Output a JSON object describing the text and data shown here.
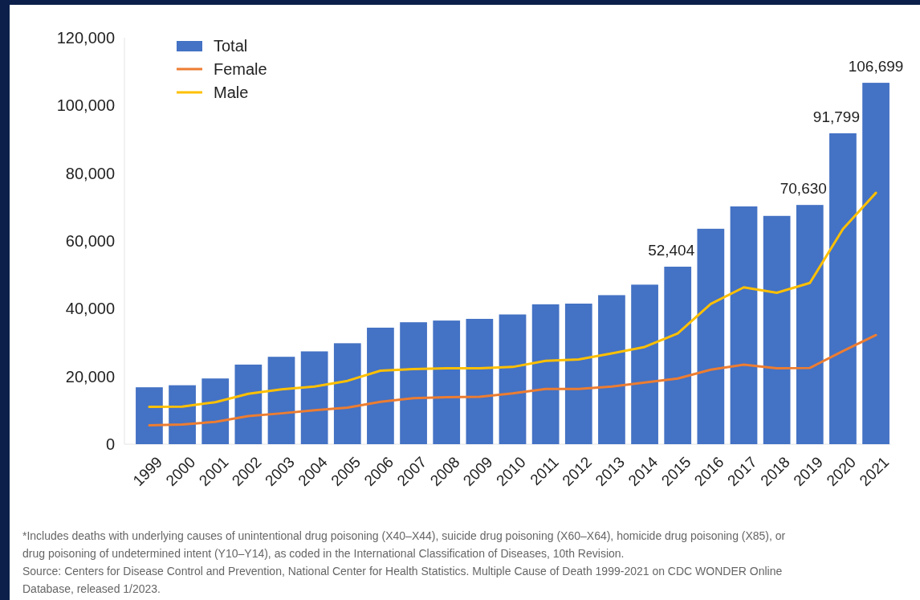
{
  "chart_data": {
    "type": "bar",
    "categories": [
      "1999",
      "2000",
      "2001",
      "2002",
      "2003",
      "2004",
      "2005",
      "2006",
      "2007",
      "2008",
      "2009",
      "2010",
      "2011",
      "2012",
      "2013",
      "2014",
      "2015",
      "2016",
      "2017",
      "2018",
      "2019",
      "2020",
      "2021"
    ],
    "series": [
      {
        "name": "Total",
        "color": "#4472c4",
        "values": [
          16800,
          17400,
          19400,
          23500,
          25800,
          27400,
          29800,
          34400,
          36000,
          36500,
          37000,
          38300,
          41300,
          41500,
          44000,
          47100,
          52404,
          63600,
          70200,
          67400,
          70630,
          91799,
          106699
        ],
        "value_labels": [
          null,
          null,
          null,
          null,
          null,
          null,
          null,
          null,
          null,
          null,
          null,
          null,
          null,
          null,
          null,
          null,
          "52,404",
          null,
          null,
          null,
          "70,630",
          "91,799",
          "106,699"
        ]
      },
      {
        "name": "Female",
        "type": "line",
        "color": "#ed7d31",
        "values": [
          5600,
          5800,
          6600,
          8300,
          9100,
          10000,
          10800,
          12500,
          13600,
          13900,
          14000,
          15000,
          16300,
          16300,
          17000,
          18200,
          19400,
          22000,
          23500,
          22400,
          22500,
          27500,
          32200
        ]
      },
      {
        "name": "Male",
        "type": "line",
        "color": "#ffc000",
        "values": [
          11000,
          11100,
          12400,
          14900,
          16200,
          17000,
          18700,
          21700,
          22200,
          22400,
          22400,
          22800,
          24600,
          25000,
          26800,
          28700,
          32700,
          41400,
          46300,
          44700,
          47600,
          63500,
          74200
        ]
      }
    ],
    "ylim": [
      0,
      120000
    ],
    "yticks": [
      {
        "value": 0,
        "label": "0"
      },
      {
        "value": 20000,
        "label": "20,000"
      },
      {
        "value": 40000,
        "label": "40,000"
      },
      {
        "value": 60000,
        "label": "60,000"
      },
      {
        "value": 80000,
        "label": "80,000"
      },
      {
        "value": 100000,
        "label": "100,000"
      },
      {
        "value": 120000,
        "label": "120,000"
      }
    ],
    "grid": false,
    "legend": "top left",
    "marker": "none",
    "line_style": "solid",
    "annotations": [
      "*Includes deaths with underlying causes of unintentional drug poisoning (X40–X44), suicide drug poisoning (X60–X64), homicide drug poisoning (X85), or drug poisoning of undetermined intent (Y10–Y14), as coded in the International Classification of Diseases, 10th Revision.",
      "Source: Centers for Disease Control and Prevention, National Center for Health Statistics. Multiple Cause of Death 1999-2021 on CDC WONDER Online Database, released 1/2023."
    ]
  }
}
